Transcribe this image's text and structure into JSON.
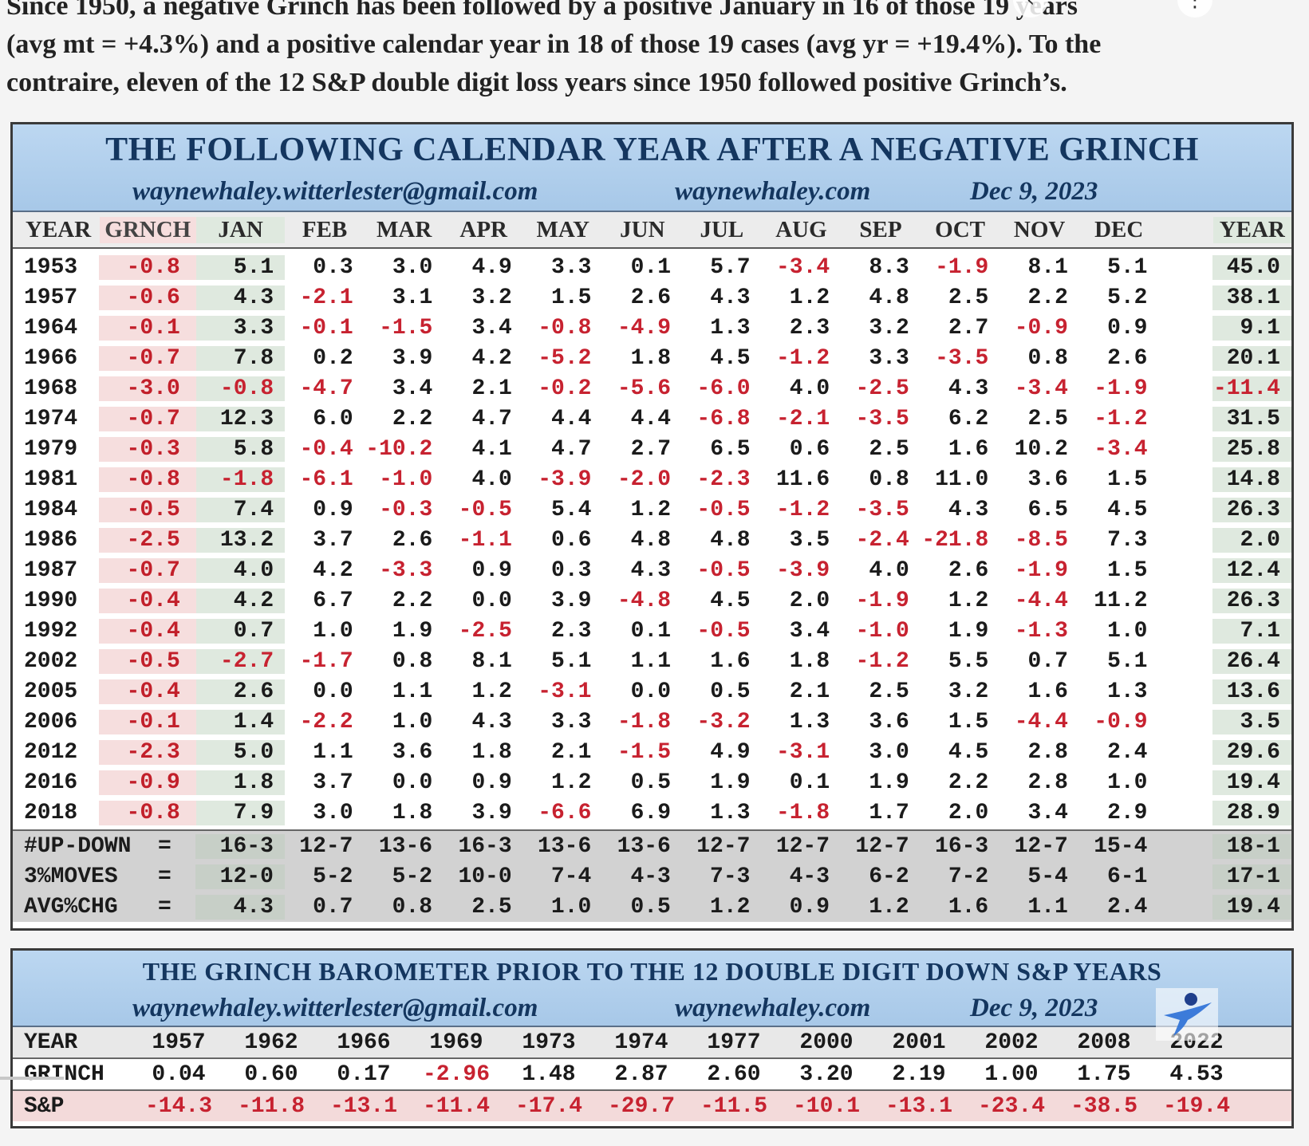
{
  "intro": {
    "line1": "Since 1950, a negative Grinch has been followed by a positive January in 16 of those 19 years",
    "line2": "(avg mt = +4.3%) and a positive calendar year in 18 of those 19 cases (avg yr = +19.4%). To the",
    "line3": "contraire, eleven of the 12 S&P double digit loss years since 1950 followed positive Grinch’s."
  },
  "table1": {
    "title": "THE FOLLOWING CALENDAR YEAR AFTER A NEGATIVE GRINCH",
    "email": "waynewhaley.witterlester@gmail.com",
    "site": "waynewhaley.com",
    "date": "Dec 9, 2023",
    "headers": [
      "YEAR",
      "GRNCH",
      "JAN",
      "FEB",
      "MAR",
      "APR",
      "MAY",
      "JUN",
      "JUL",
      "AUG",
      "SEP",
      "OCT",
      "NOV",
      "DEC",
      "YEAR"
    ],
    "rows": [
      [
        "1953",
        "-0.8",
        "5.1",
        "0.3",
        "3.0",
        "4.9",
        "3.3",
        "0.1",
        "5.7",
        "-3.4",
        "8.3",
        "-1.9",
        "8.1",
        "5.1",
        "45.0"
      ],
      [
        "1957",
        "-0.6",
        "4.3",
        "-2.1",
        "3.1",
        "3.2",
        "1.5",
        "2.6",
        "4.3",
        "1.2",
        "4.8",
        "2.5",
        "2.2",
        "5.2",
        "38.1"
      ],
      [
        "1964",
        "-0.1",
        "3.3",
        "-0.1",
        "-1.5",
        "3.4",
        "-0.8",
        "-4.9",
        "1.3",
        "2.3",
        "3.2",
        "2.7",
        "-0.9",
        "0.9",
        "9.1"
      ],
      [
        "1966",
        "-0.7",
        "7.8",
        "0.2",
        "3.9",
        "4.2",
        "-5.2",
        "1.8",
        "4.5",
        "-1.2",
        "3.3",
        "-3.5",
        "0.8",
        "2.6",
        "20.1"
      ],
      [
        "1968",
        "-3.0",
        "-0.8",
        "-4.7",
        "3.4",
        "2.1",
        "-0.2",
        "-5.6",
        "-6.0",
        "4.0",
        "-2.5",
        "4.3",
        "-3.4",
        "-1.9",
        "-11.4"
      ],
      [
        "1974",
        "-0.7",
        "12.3",
        "6.0",
        "2.2",
        "4.7",
        "4.4",
        "4.4",
        "-6.8",
        "-2.1",
        "-3.5",
        "6.2",
        "2.5",
        "-1.2",
        "31.5"
      ],
      [
        "1979",
        "-0.3",
        "5.8",
        "-0.4",
        "-10.2",
        "4.1",
        "4.7",
        "2.7",
        "6.5",
        "0.6",
        "2.5",
        "1.6",
        "10.2",
        "-3.4",
        "25.8"
      ],
      [
        "1981",
        "-0.8",
        "-1.8",
        "-6.1",
        "-1.0",
        "4.0",
        "-3.9",
        "-2.0",
        "-2.3",
        "11.6",
        "0.8",
        "11.0",
        "3.6",
        "1.5",
        "14.8"
      ],
      [
        "1984",
        "-0.5",
        "7.4",
        "0.9",
        "-0.3",
        "-0.5",
        "5.4",
        "1.2",
        "-0.5",
        "-1.2",
        "-3.5",
        "4.3",
        "6.5",
        "4.5",
        "26.3"
      ],
      [
        "1986",
        "-2.5",
        "13.2",
        "3.7",
        "2.6",
        "-1.1",
        "0.6",
        "4.8",
        "4.8",
        "3.5",
        "-2.4",
        "-21.8",
        "-8.5",
        "7.3",
        "2.0"
      ],
      [
        "1987",
        "-0.7",
        "4.0",
        "4.2",
        "-3.3",
        "0.9",
        "0.3",
        "4.3",
        "-0.5",
        "-3.9",
        "4.0",
        "2.6",
        "-1.9",
        "1.5",
        "12.4"
      ],
      [
        "1990",
        "-0.4",
        "4.2",
        "6.7",
        "2.2",
        "0.0",
        "3.9",
        "-4.8",
        "4.5",
        "2.0",
        "-1.9",
        "1.2",
        "-4.4",
        "11.2",
        "26.3"
      ],
      [
        "1992",
        "-0.4",
        "0.7",
        "1.0",
        "1.9",
        "-2.5",
        "2.3",
        "0.1",
        "-0.5",
        "3.4",
        "-1.0",
        "1.9",
        "-1.3",
        "1.0",
        "7.1"
      ],
      [
        "2002",
        "-0.5",
        "-2.7",
        "-1.7",
        "0.8",
        "8.1",
        "5.1",
        "1.1",
        "1.6",
        "1.8",
        "-1.2",
        "5.5",
        "0.7",
        "5.1",
        "26.4"
      ],
      [
        "2005",
        "-0.4",
        "2.6",
        "0.0",
        "1.1",
        "1.2",
        "-3.1",
        "0.0",
        "0.5",
        "2.1",
        "2.5",
        "3.2",
        "1.6",
        "1.3",
        "13.6"
      ],
      [
        "2006",
        "-0.1",
        "1.4",
        "-2.2",
        "1.0",
        "4.3",
        "3.3",
        "-1.8",
        "-3.2",
        "1.3",
        "3.6",
        "1.5",
        "-4.4",
        "-0.9",
        "3.5"
      ],
      [
        "2012",
        "-2.3",
        "5.0",
        "1.1",
        "3.6",
        "1.8",
        "2.1",
        "-1.5",
        "4.9",
        "-3.1",
        "3.0",
        "4.5",
        "2.8",
        "2.4",
        "29.6"
      ],
      [
        "2016",
        "-0.9",
        "1.8",
        "3.7",
        "0.0",
        "0.9",
        "1.2",
        "0.5",
        "1.9",
        "0.1",
        "1.9",
        "2.2",
        "2.8",
        "1.0",
        "19.4"
      ],
      [
        "2018",
        "-0.8",
        "7.9",
        "3.0",
        "1.8",
        "3.9",
        "-6.6",
        "6.9",
        "1.3",
        "-1.8",
        "1.7",
        "2.0",
        "3.4",
        "2.9",
        "28.9"
      ]
    ],
    "summary": [
      {
        "label": "#UP-DOWN  =",
        "values": [
          "16-3",
          "12-7",
          "13-6",
          "16-3",
          "13-6",
          "13-6",
          "12-7",
          "12-7",
          "12-7",
          "16-3",
          "12-7",
          "15-4",
          "18-1"
        ]
      },
      {
        "label": "3%MOVES   =",
        "values": [
          "12-0",
          "5-2",
          "5-2",
          "10-0",
          "7-4",
          "4-3",
          "7-3",
          "4-3",
          "6-2",
          "7-2",
          "5-4",
          "6-1",
          "17-1"
        ]
      },
      {
        "label": "AVG%CHG   =",
        "values": [
          "4.3",
          "0.7",
          "0.8",
          "2.5",
          "1.0",
          "0.5",
          "1.2",
          "0.9",
          "1.2",
          "1.6",
          "1.1",
          "2.4",
          "19.4"
        ]
      }
    ]
  },
  "table2": {
    "title": "THE GRINCH BAROMETER PRIOR TO THE 12 DOUBLE DIGIT DOWN S&P YEARS",
    "email": "waynewhaley.witterlester@gmail.com",
    "site": "waynewhaley.com",
    "date": "Dec 9, 2023",
    "rows": [
      {
        "label": "YEAR",
        "values": [
          "1957",
          "1962",
          "1966",
          "1969",
          "1973",
          "1974",
          "1977",
          "2000",
          "2001",
          "2002",
          "2008",
          "2022"
        ]
      },
      {
        "label": "GRINCH",
        "values": [
          "0.04",
          "0.60",
          "0.17",
          "-2.96",
          "1.48",
          "2.87",
          "2.60",
          "3.20",
          "2.19",
          "1.00",
          "1.75",
          "4.53"
        ]
      },
      {
        "label": "S&P",
        "values": [
          "-14.3",
          "-11.8",
          "-13.1",
          "-11.4",
          "-17.4",
          "-29.7",
          "-11.5",
          "-10.1",
          "-13.1",
          "-23.4",
          "-38.5",
          "-19.4"
        ]
      }
    ]
  },
  "colors": {
    "negative": "#c72230",
    "banner": "#a7c8e8",
    "title": "#14365f",
    "summary_bg": "#d2d2d2"
  },
  "icons": [
    "overlay-control-icon",
    "logo-figure-icon"
  ]
}
